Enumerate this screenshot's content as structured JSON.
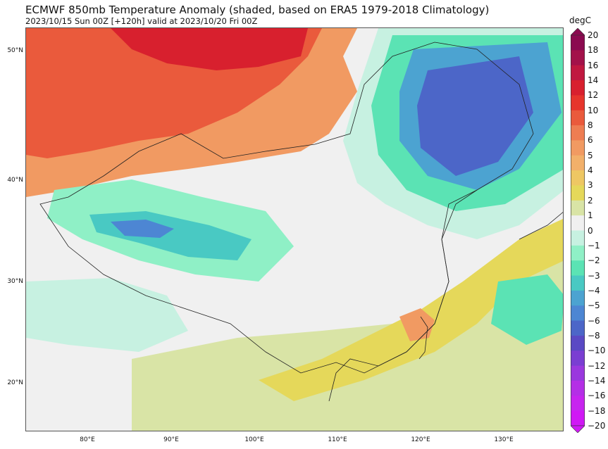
{
  "title": "ECMWF 850mb Temperature Anomaly (shaded, based on ERA5 1979-2018 Climatology)",
  "subtitle": "2023/10/15 Sun 00Z [+120h] valid at 2023/10/20 Fri 00Z",
  "map": {
    "lon_ticks": [
      "80°E",
      "90°E",
      "100°E",
      "110°E",
      "120°E",
      "130°E"
    ],
    "lat_ticks": [
      "50°N",
      "40°N",
      "30°N",
      "20°N"
    ]
  },
  "colorbar": {
    "unit": "degC",
    "levels": [
      "20",
      "18",
      "16",
      "14",
      "12",
      "10",
      "8",
      "6",
      "5",
      "4",
      "3",
      "2",
      "1",
      "0",
      "−1",
      "−2",
      "−3",
      "−4",
      "−5",
      "−6",
      "−8",
      "−10",
      "−12",
      "−14",
      "−16",
      "−18",
      "−20"
    ],
    "colors": [
      "#8b0a50",
      "#a3124a",
      "#c01840",
      "#d8202e",
      "#e6352c",
      "#ea5a3c",
      "#ee7d52",
      "#f19a62",
      "#f2b06a",
      "#eec763",
      "#e5d85a",
      "#d9e4a6",
      "#f0f0f0",
      "#c7f1e1",
      "#8ff0c6",
      "#5be3b4",
      "#49c9c3",
      "#4ca3d1",
      "#4d86d3",
      "#4c66c8",
      "#5a49c4",
      "#7a3ed2",
      "#9a38de",
      "#b42fe6",
      "#c724ef",
      "#d018f5"
    ]
  }
}
